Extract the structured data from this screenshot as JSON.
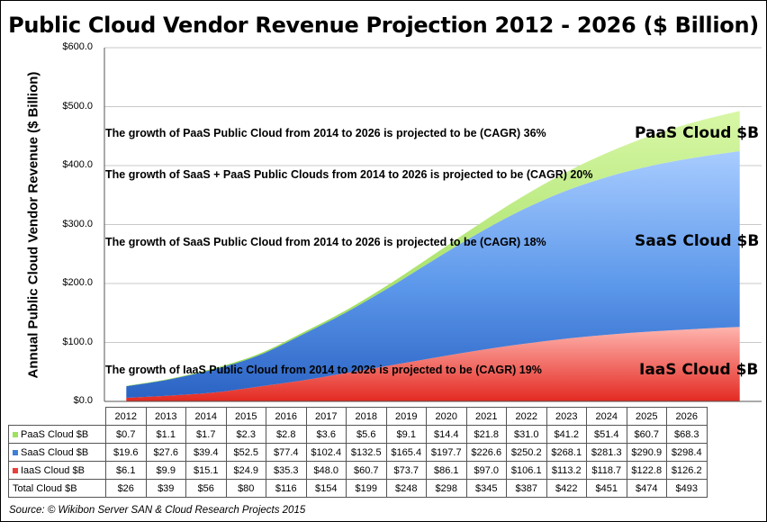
{
  "chart_data": {
    "type": "area",
    "stacked": true,
    "title": "Public Cloud Vendor Revenue Projection 2012 - 2026 ($ Billion)",
    "ylabel": "Annual Public Cloud Vendor Revenue ($ Billion)",
    "xlabel": "",
    "ylim": [
      0,
      600
    ],
    "yticks": [
      0,
      100,
      200,
      300,
      400,
      500,
      600
    ],
    "ytick_labels": [
      "$0.0",
      "$100.0",
      "$200.0",
      "$300.0",
      "$400.0",
      "$500.0",
      "$600.0"
    ],
    "categories": [
      "2012",
      "2013",
      "2014",
      "2015",
      "2016",
      "2017",
      "2018",
      "2019",
      "2020",
      "2021",
      "2022",
      "2023",
      "2024",
      "2025",
      "2026"
    ],
    "series": [
      {
        "name": "IaaS Cloud $B",
        "color": "#e8403a",
        "values": [
          6.1,
          9.9,
          15.1,
          24.9,
          35.3,
          48.0,
          60.7,
          73.7,
          86.1,
          97.0,
          106.1,
          113.2,
          118.7,
          122.8,
          126.2
        ]
      },
      {
        "name": "SaaS Cloud $B",
        "color": "#3f7fd6",
        "values": [
          19.6,
          27.6,
          39.4,
          52.5,
          77.4,
          102.4,
          132.5,
          165.4,
          197.7,
          226.6,
          250.2,
          268.1,
          281.3,
          290.9,
          298.4
        ]
      },
      {
        "name": "PaaS Cloud $B",
        "color": "#9fe060",
        "values": [
          0.7,
          1.1,
          1.7,
          2.3,
          2.8,
          3.6,
          5.6,
          9.1,
          14.4,
          21.8,
          31.0,
          41.2,
          51.4,
          60.7,
          68.3
        ]
      }
    ],
    "table": {
      "rows": [
        {
          "label": "PaaS Cloud $B",
          "color": "#9fe060",
          "values": [
            "$0.7",
            "$1.1",
            "$1.7",
            "$2.3",
            "$2.8",
            "$3.6",
            "$5.6",
            "$9.1",
            "$14.4",
            "$21.8",
            "$31.0",
            "$41.2",
            "$51.4",
            "$60.7",
            "$68.3"
          ]
        },
        {
          "label": "SaaS Cloud $B",
          "color": "#3f7fd6",
          "values": [
            "$19.6",
            "$27.6",
            "$39.4",
            "$52.5",
            "$77.4",
            "$102.4",
            "$132.5",
            "$165.4",
            "$197.7",
            "$226.6",
            "$250.2",
            "$268.1",
            "$281.3",
            "$290.9",
            "$298.4"
          ]
        },
        {
          "label": "IaaS Cloud $B",
          "color": "#e8403a",
          "values": [
            "$6.1",
            "$9.9",
            "$15.1",
            "$24.9",
            "$35.3",
            "$48.0",
            "$60.7",
            "$73.7",
            "$86.1",
            "$97.0",
            "$106.1",
            "$113.2",
            "$118.7",
            "$122.8",
            "$126.2"
          ]
        },
        {
          "label": "Total Cloud $B",
          "color": "",
          "values": [
            "$26",
            "$39",
            "$56",
            "$80",
            "$116",
            "$154",
            "$199",
            "$248",
            "$298",
            "$345",
            "$387",
            "$422",
            "$451",
            "$474",
            "$493"
          ]
        }
      ]
    },
    "annotations": {
      "paas_growth": "The growth of PaaS Public Cloud from 2014 to 2026 is projected to be (CAGR) 36%",
      "saas_paas_growth": "The growth of SaaS + PaaS Public Clouds from 2014 to 2026 is projected to be (CAGR) 20%",
      "saas_growth": "The growth of SaaS Public Cloud from 2014 to 2026 is projected to be (CAGR) 18%",
      "iaas_growth": "The growth of IaaS Public Cloud from 2014 to 2026 is projected to be (CAGR) 19%",
      "paas_label": "PaaS Cloud $B",
      "saas_label": "SaaS Cloud $B",
      "iaas_label": "IaaS Cloud $B"
    },
    "source": "Source: © Wikibon Server SAN & Cloud Research Projects 2015"
  }
}
